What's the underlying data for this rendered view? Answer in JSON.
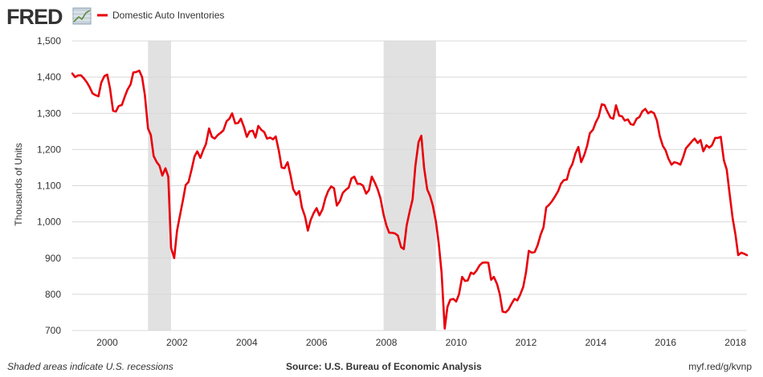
{
  "header": {
    "logo_text": "FRED",
    "logo_icon": "fred-graph-icon",
    "legend_label": "Domestic Auto Inventories"
  },
  "footer": {
    "recession_note": "Shaded areas indicate U.S. recessions",
    "source": "Source: U.S. Bureau of Economic Analysis",
    "link": "myf.red/g/kvnp"
  },
  "colors": {
    "line": "#e8000b",
    "recession": "#e1e1e1",
    "grid": "#d8d8d8",
    "text": "#333333",
    "logo": "#333333"
  },
  "chart_data": {
    "type": "line",
    "ylabel": "Thousands of Units",
    "ylim": [
      700,
      1500
    ],
    "yticks": [
      700,
      800,
      900,
      1000,
      1100,
      1200,
      1300,
      1400,
      1500
    ],
    "ytick_labels": [
      "700",
      "800",
      "900",
      "1,000",
      "1,100",
      "1,200",
      "1,300",
      "1,400",
      "1,500"
    ],
    "xlim": [
      1999.0,
      2018.33
    ],
    "xticks": [
      2000,
      2002,
      2004,
      2006,
      2008,
      2010,
      2012,
      2014,
      2016,
      2018
    ],
    "xtick_labels": [
      "2000",
      "2002",
      "2004",
      "2006",
      "2008",
      "2010",
      "2012",
      "2014",
      "2016",
      "2018"
    ],
    "grid": "horizontal",
    "recessions": [
      [
        2001.17,
        2001.83
      ],
      [
        2007.92,
        2009.42
      ]
    ],
    "series": [
      {
        "name": "Domestic Auto Inventories",
        "points": [
          [
            1999.0,
            1410
          ],
          [
            1999.08,
            1400
          ],
          [
            1999.17,
            1405
          ],
          [
            1999.25,
            1405
          ],
          [
            1999.33,
            1397
          ],
          [
            1999.42,
            1385
          ],
          [
            1999.5,
            1372
          ],
          [
            1999.58,
            1355
          ],
          [
            1999.67,
            1350
          ],
          [
            1999.75,
            1347
          ],
          [
            1999.83,
            1385
          ],
          [
            1999.92,
            1403
          ],
          [
            2000.0,
            1407
          ],
          [
            2000.08,
            1370
          ],
          [
            2000.17,
            1307
          ],
          [
            2000.25,
            1305
          ],
          [
            2000.33,
            1320
          ],
          [
            2000.42,
            1323
          ],
          [
            2000.5,
            1345
          ],
          [
            2000.58,
            1365
          ],
          [
            2000.67,
            1380
          ],
          [
            2000.75,
            1413
          ],
          [
            2000.83,
            1414
          ],
          [
            2000.92,
            1418
          ],
          [
            2001.0,
            1400
          ],
          [
            2001.08,
            1350
          ],
          [
            2001.17,
            1258
          ],
          [
            2001.25,
            1240
          ],
          [
            2001.33,
            1182
          ],
          [
            2001.42,
            1165
          ],
          [
            2001.5,
            1155
          ],
          [
            2001.58,
            1128
          ],
          [
            2001.67,
            1148
          ],
          [
            2001.75,
            1125
          ],
          [
            2001.83,
            928
          ],
          [
            2001.92,
            900
          ],
          [
            2002.0,
            975
          ],
          [
            2002.08,
            1015
          ],
          [
            2002.17,
            1060
          ],
          [
            2002.25,
            1102
          ],
          [
            2002.33,
            1110
          ],
          [
            2002.42,
            1145
          ],
          [
            2002.5,
            1180
          ],
          [
            2002.58,
            1195
          ],
          [
            2002.67,
            1177
          ],
          [
            2002.75,
            1198
          ],
          [
            2002.83,
            1215
          ],
          [
            2002.92,
            1258
          ],
          [
            2003.0,
            1235
          ],
          [
            2003.08,
            1230
          ],
          [
            2003.17,
            1240
          ],
          [
            2003.25,
            1246
          ],
          [
            2003.33,
            1253
          ],
          [
            2003.42,
            1278
          ],
          [
            2003.5,
            1285
          ],
          [
            2003.58,
            1300
          ],
          [
            2003.67,
            1272
          ],
          [
            2003.75,
            1273
          ],
          [
            2003.83,
            1285
          ],
          [
            2003.92,
            1262
          ],
          [
            2004.0,
            1235
          ],
          [
            2004.08,
            1250
          ],
          [
            2004.17,
            1252
          ],
          [
            2004.25,
            1233
          ],
          [
            2004.33,
            1265
          ],
          [
            2004.42,
            1254
          ],
          [
            2004.5,
            1248
          ],
          [
            2004.58,
            1230
          ],
          [
            2004.67,
            1233
          ],
          [
            2004.75,
            1228
          ],
          [
            2004.83,
            1236
          ],
          [
            2004.92,
            1195
          ],
          [
            2005.0,
            1150
          ],
          [
            2005.08,
            1148
          ],
          [
            2005.17,
            1165
          ],
          [
            2005.25,
            1130
          ],
          [
            2005.33,
            1090
          ],
          [
            2005.42,
            1075
          ],
          [
            2005.5,
            1085
          ],
          [
            2005.58,
            1040
          ],
          [
            2005.67,
            1015
          ],
          [
            2005.75,
            976
          ],
          [
            2005.83,
            1005
          ],
          [
            2005.92,
            1025
          ],
          [
            2006.0,
            1038
          ],
          [
            2006.08,
            1018
          ],
          [
            2006.17,
            1035
          ],
          [
            2006.25,
            1065
          ],
          [
            2006.33,
            1085
          ],
          [
            2006.42,
            1098
          ],
          [
            2006.5,
            1093
          ],
          [
            2006.58,
            1045
          ],
          [
            2006.67,
            1058
          ],
          [
            2006.75,
            1080
          ],
          [
            2006.83,
            1088
          ],
          [
            2006.92,
            1095
          ],
          [
            2007.0,
            1120
          ],
          [
            2007.08,
            1125
          ],
          [
            2007.17,
            1105
          ],
          [
            2007.25,
            1105
          ],
          [
            2007.33,
            1100
          ],
          [
            2007.42,
            1078
          ],
          [
            2007.5,
            1088
          ],
          [
            2007.58,
            1125
          ],
          [
            2007.67,
            1108
          ],
          [
            2007.75,
            1090
          ],
          [
            2007.83,
            1065
          ],
          [
            2007.92,
            1020
          ],
          [
            2008.0,
            990
          ],
          [
            2008.08,
            970
          ],
          [
            2008.17,
            970
          ],
          [
            2008.25,
            968
          ],
          [
            2008.33,
            962
          ],
          [
            2008.42,
            930
          ],
          [
            2008.5,
            925
          ],
          [
            2008.58,
            990
          ],
          [
            2008.67,
            1030
          ],
          [
            2008.75,
            1062
          ],
          [
            2008.83,
            1155
          ],
          [
            2008.92,
            1220
          ],
          [
            2009.0,
            1238
          ],
          [
            2009.08,
            1150
          ],
          [
            2009.17,
            1090
          ],
          [
            2009.25,
            1072
          ],
          [
            2009.33,
            1045
          ],
          [
            2009.42,
            1000
          ],
          [
            2009.5,
            940
          ],
          [
            2009.58,
            860
          ],
          [
            2009.67,
            705
          ],
          [
            2009.75,
            765
          ],
          [
            2009.83,
            785
          ],
          [
            2009.92,
            787
          ],
          [
            2010.0,
            780
          ],
          [
            2010.08,
            800
          ],
          [
            2010.17,
            848
          ],
          [
            2010.25,
            837
          ],
          [
            2010.33,
            838
          ],
          [
            2010.42,
            860
          ],
          [
            2010.5,
            856
          ],
          [
            2010.58,
            865
          ],
          [
            2010.67,
            880
          ],
          [
            2010.75,
            887
          ],
          [
            2010.83,
            888
          ],
          [
            2010.92,
            887
          ],
          [
            2011.0,
            840
          ],
          [
            2011.08,
            848
          ],
          [
            2011.17,
            828
          ],
          [
            2011.25,
            800
          ],
          [
            2011.33,
            752
          ],
          [
            2011.42,
            750
          ],
          [
            2011.5,
            758
          ],
          [
            2011.58,
            773
          ],
          [
            2011.67,
            787
          ],
          [
            2011.75,
            783
          ],
          [
            2011.83,
            798
          ],
          [
            2011.92,
            820
          ],
          [
            2012.0,
            860
          ],
          [
            2012.08,
            920
          ],
          [
            2012.17,
            915
          ],
          [
            2012.25,
            917
          ],
          [
            2012.33,
            935
          ],
          [
            2012.42,
            965
          ],
          [
            2012.5,
            985
          ],
          [
            2012.58,
            1040
          ],
          [
            2012.67,
            1048
          ],
          [
            2012.75,
            1058
          ],
          [
            2012.83,
            1070
          ],
          [
            2012.92,
            1085
          ],
          [
            2013.0,
            1105
          ],
          [
            2013.08,
            1115
          ],
          [
            2013.17,
            1117
          ],
          [
            2013.25,
            1145
          ],
          [
            2013.33,
            1160
          ],
          [
            2013.42,
            1190
          ],
          [
            2013.5,
            1207
          ],
          [
            2013.58,
            1165
          ],
          [
            2013.67,
            1185
          ],
          [
            2013.75,
            1210
          ],
          [
            2013.83,
            1245
          ],
          [
            2013.92,
            1255
          ],
          [
            2014.0,
            1275
          ],
          [
            2014.08,
            1290
          ],
          [
            2014.17,
            1325
          ],
          [
            2014.25,
            1323
          ],
          [
            2014.33,
            1305
          ],
          [
            2014.42,
            1288
          ],
          [
            2014.5,
            1285
          ],
          [
            2014.58,
            1322
          ],
          [
            2014.67,
            1293
          ],
          [
            2014.75,
            1292
          ],
          [
            2014.83,
            1280
          ],
          [
            2014.92,
            1283
          ],
          [
            2015.0,
            1270
          ],
          [
            2015.08,
            1268
          ],
          [
            2015.17,
            1285
          ],
          [
            2015.25,
            1290
          ],
          [
            2015.33,
            1305
          ],
          [
            2015.42,
            1312
          ],
          [
            2015.5,
            1300
          ],
          [
            2015.58,
            1305
          ],
          [
            2015.67,
            1300
          ],
          [
            2015.75,
            1280
          ],
          [
            2015.83,
            1238
          ],
          [
            2015.92,
            1210
          ],
          [
            2016.0,
            1198
          ],
          [
            2016.08,
            1175
          ],
          [
            2016.17,
            1158
          ],
          [
            2016.25,
            1165
          ],
          [
            2016.33,
            1163
          ],
          [
            2016.42,
            1158
          ],
          [
            2016.5,
            1178
          ],
          [
            2016.58,
            1203
          ],
          [
            2016.67,
            1213
          ],
          [
            2016.75,
            1222
          ],
          [
            2016.83,
            1230
          ],
          [
            2016.92,
            1218
          ],
          [
            2017.0,
            1226
          ],
          [
            2017.08,
            1195
          ],
          [
            2017.17,
            1212
          ],
          [
            2017.25,
            1205
          ],
          [
            2017.33,
            1212
          ],
          [
            2017.42,
            1232
          ],
          [
            2017.5,
            1232
          ],
          [
            2017.58,
            1235
          ],
          [
            2017.67,
            1170
          ],
          [
            2017.75,
            1145
          ],
          [
            2017.83,
            1080
          ],
          [
            2017.92,
            1010
          ],
          [
            2018.0,
            965
          ],
          [
            2018.08,
            908
          ],
          [
            2018.17,
            915
          ],
          [
            2018.25,
            912
          ],
          [
            2018.33,
            908
          ]
        ]
      }
    ]
  }
}
